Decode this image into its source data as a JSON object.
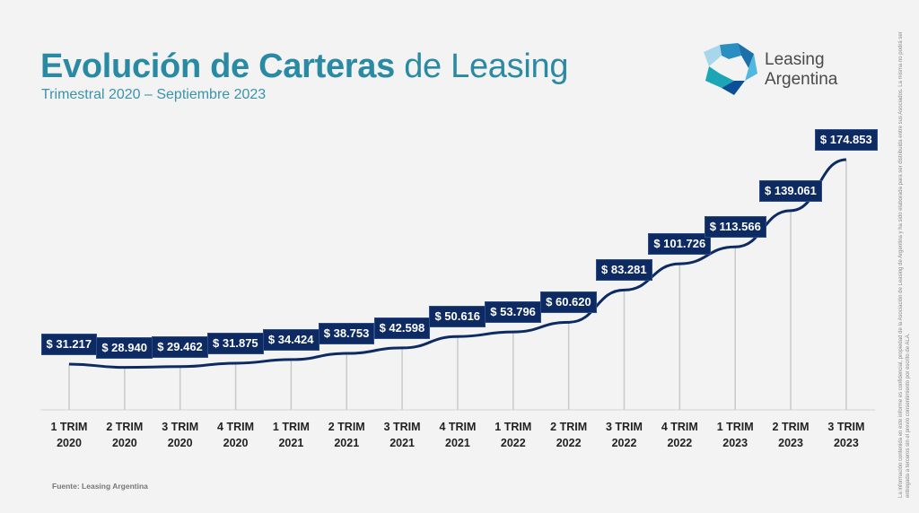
{
  "header": {
    "title_bold": "Evolución de Carteras",
    "title_regular": " de Leasing",
    "subtitle": "Trimestral 2020 – Septiembre 2023"
  },
  "logo": {
    "line1": "Leasing",
    "line2": "Argentina"
  },
  "footer": {
    "source": "Fuente: Leasing Argentina"
  },
  "disclaimer": "La información contenida en este informe es confidencial, propiedad de la Asociación de Leasing de Argentina y ha sido elaborada para ser distribuida entre sus Asociados. La misma no podrá ser entregada a terceros sin el previo consentimiento por escrito de ALA.",
  "colors": {
    "title": "#2a8aa4",
    "line": "#0d2a63",
    "label_bg": "#0d2a63",
    "grid": "#c9c9c9",
    "background": "#f3f3f3"
  },
  "chart_data": {
    "type": "line",
    "title": "Evolución de Carteras de Leasing",
    "subtitle": "Trimestral 2020 – Septiembre 2023",
    "xlabel": "",
    "ylabel": "",
    "categories": [
      "1 TRIM 2020",
      "2 TRIM 2020",
      "3 TRIM 2020",
      "4 TRIM 2020",
      "1 TRIM 2021",
      "2 TRIM 2021",
      "3 TRIM 2021",
      "4 TRIM 2021",
      "1 TRIM 2022",
      "2 TRIM 2022",
      "3 TRIM 2022",
      "4 TRIM 2022",
      "1 TRIM 2023",
      "2 TRIM 2023",
      "3 TRIM 2023"
    ],
    "category_lines": [
      [
        "1 TRIM",
        "2020"
      ],
      [
        "2 TRIM",
        "2020"
      ],
      [
        "3 TRIM",
        "2020"
      ],
      [
        "4 TRIM",
        "2020"
      ],
      [
        "1 TRIM",
        "2021"
      ],
      [
        "2 TRIM",
        "2021"
      ],
      [
        "3 TRIM",
        "2021"
      ],
      [
        "4 TRIM",
        "2021"
      ],
      [
        "1 TRIM",
        "2022"
      ],
      [
        "2 TRIM",
        "2022"
      ],
      [
        "3 TRIM",
        "2022"
      ],
      [
        "4 TRIM",
        "2022"
      ],
      [
        "1 TRIM",
        "2023"
      ],
      [
        "2 TRIM",
        "2023"
      ],
      [
        "3 TRIM",
        "2023"
      ]
    ],
    "values": [
      31217,
      28940,
      29462,
      31875,
      34424,
      38753,
      42598,
      50616,
      53796,
      60620,
      83281,
      101726,
      113566,
      139061,
      174853
    ],
    "labels": [
      "$ 31.217",
      "$ 28.940",
      "$ 29.462",
      "$ 31.875",
      "$ 34.424",
      "$ 38.753",
      "$ 42.598",
      "$ 50.616",
      "$ 53.796",
      "$ 60.620",
      "$ 83.281",
      "$ 101.726",
      "$ 113.566",
      "$ 139.061",
      "$ 174.853"
    ],
    "grid": "vertical drop lines only",
    "legend": "none",
    "data_labels": true
  }
}
